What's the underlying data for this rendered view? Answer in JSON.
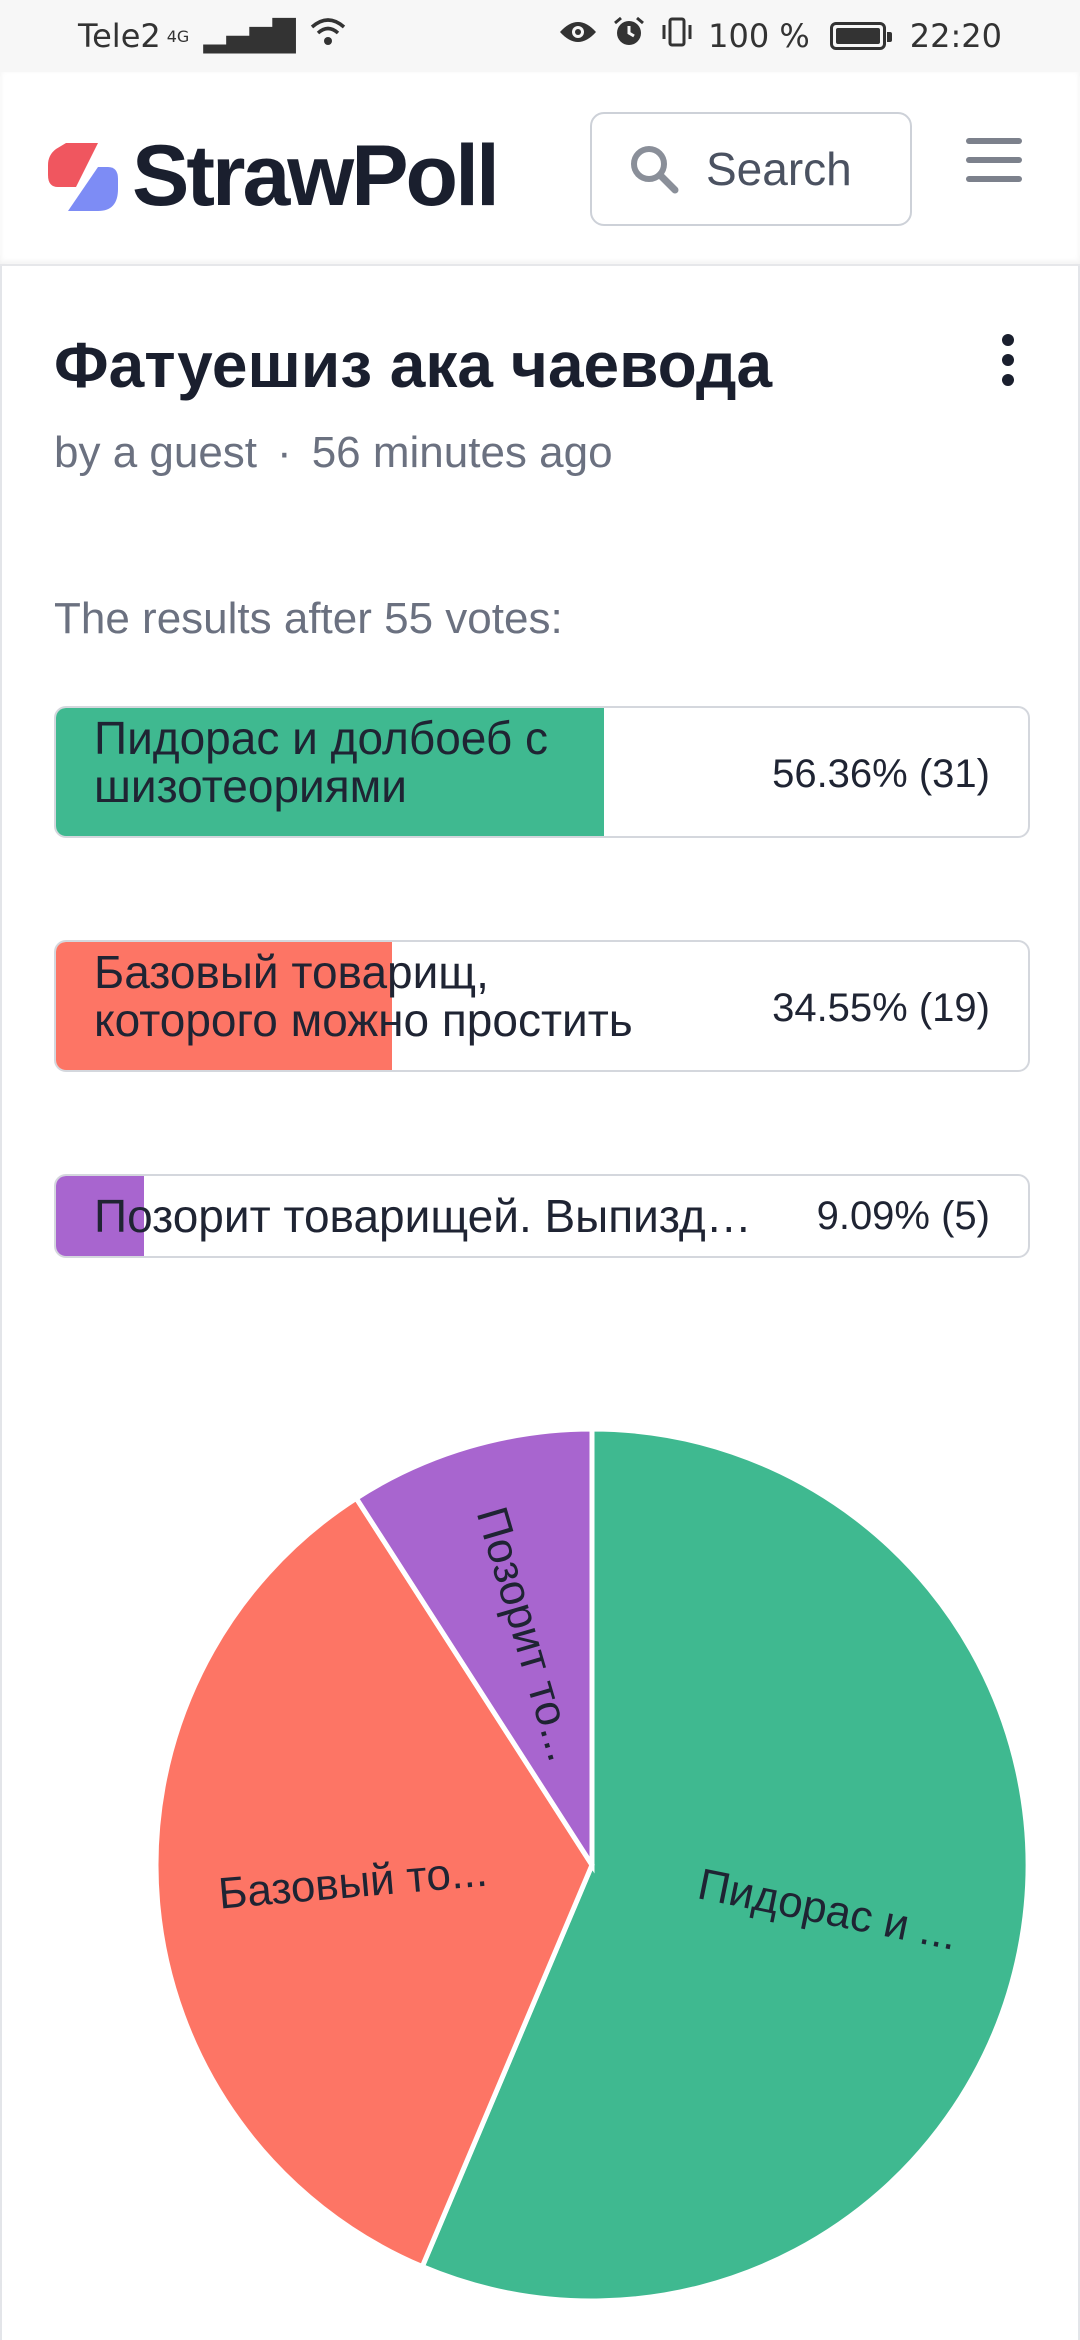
{
  "status_bar": {
    "carrier": "Tele2",
    "network": "4G",
    "battery": "100 %",
    "time": "22:20"
  },
  "header": {
    "logo_text": "StrawPoll",
    "search_placeholder": "Search",
    "colors": {
      "logo_red": "#f0565f",
      "logo_blue": "#7d8cf5"
    }
  },
  "poll": {
    "title": "Фатуешиз ака чаевода",
    "author": "by a guest",
    "separator": "·",
    "time_ago": "56 minutes ago",
    "results_heading": "The results after 55 votes:",
    "options": [
      {
        "label_line1": "Пидорас и долбоеб с",
        "label_line2": "шизотеориями",
        "percent_text": "56.36% (31)",
        "share": 0.5636,
        "votes": 31,
        "color": "#3fb990"
      },
      {
        "label_line1": "Базовый товарищ,",
        "label_line2": "которого можно простить",
        "percent_text": "34.55% (19)",
        "share": 0.3455,
        "votes": 19,
        "color": "#fd7565"
      },
      {
        "label_line1": "Позорит товарищей. Выпиздить",
        "label_line2": "",
        "percent_text": "9.09% (5)",
        "share": 0.0909,
        "votes": 5,
        "color": "#a865cf"
      }
    ]
  },
  "chart_data": {
    "type": "pie",
    "categories": [
      "Пидорас и ...",
      "Базовый то...",
      "Позорит то..."
    ],
    "values": [
      31,
      19,
      5
    ],
    "colors": [
      "#3fb990",
      "#fd7565",
      "#a865cf"
    ],
    "title": ""
  }
}
